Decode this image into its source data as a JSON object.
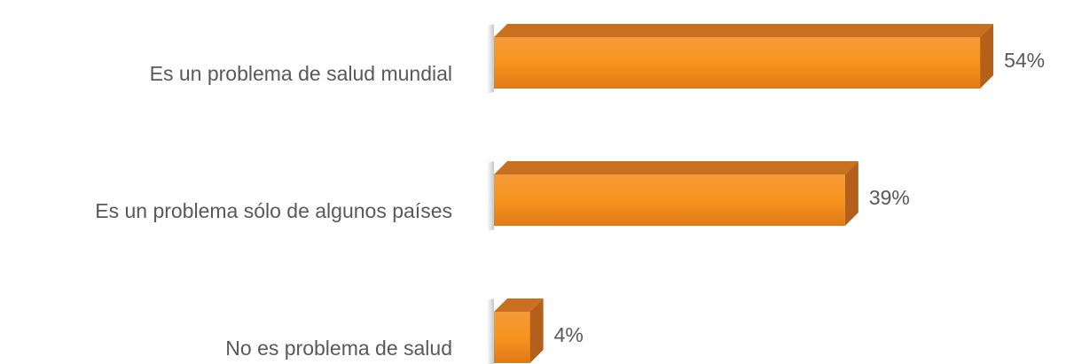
{
  "chart_data": {
    "type": "bar3d_horizontal",
    "categories": [
      "Es un problema de salud mundial",
      "Es un problema sólo de algunos países",
      "No es problema de salud"
    ],
    "values": [
      54,
      39,
      4
    ],
    "value_labels": [
      "54%",
      "39%",
      "4%"
    ],
    "color": "#f7941d"
  }
}
